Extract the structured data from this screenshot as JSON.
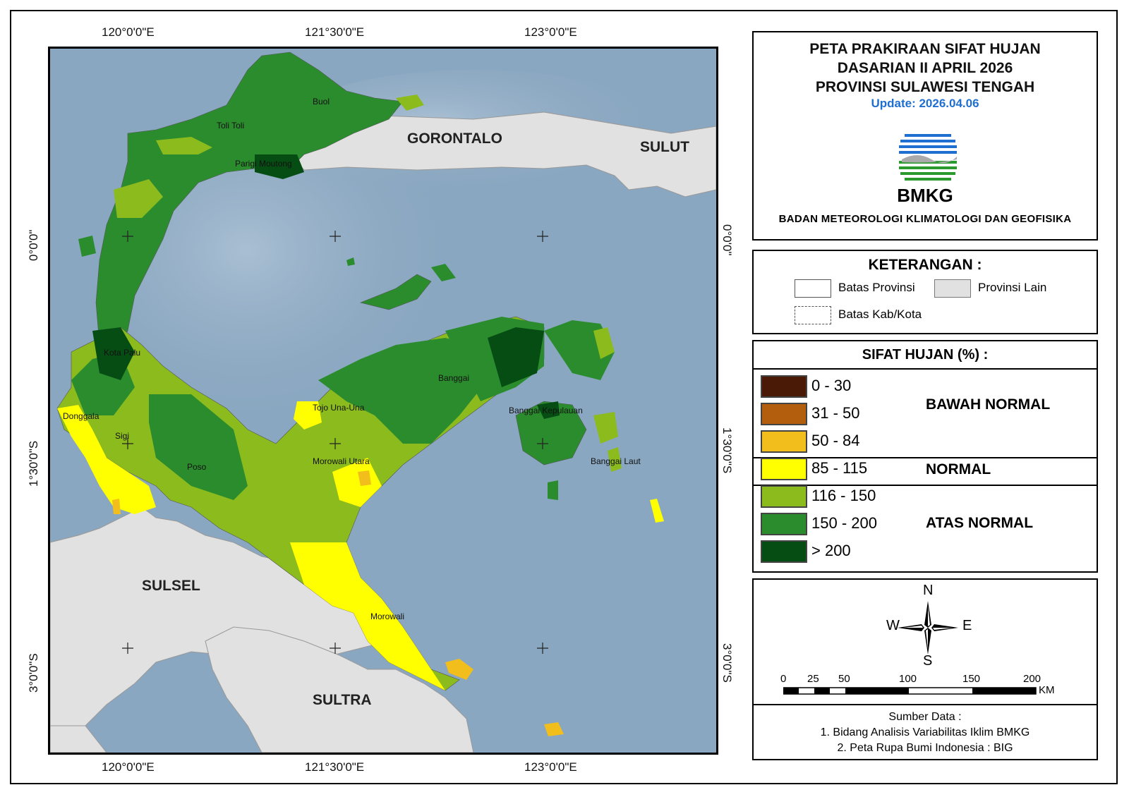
{
  "map": {
    "coords_top": [
      "120°0'0\"E",
      "121°30'0\"E",
      "123°0'0\"E"
    ],
    "coords_bottom": [
      "120°0'0\"E",
      "121°30'0\"E",
      "123°0'0\"E"
    ],
    "coords_left": [
      "0°0'0\"",
      "1°30'0\"S",
      "3°0'0\"S"
    ],
    "coords_right": [
      "0°0'0\"",
      "1°30'0\"S",
      "3°0'0\"S"
    ],
    "other_provinces": {
      "gorontalo": "GORONTALO",
      "sulut": "SULUT",
      "sulsel": "SULSEL",
      "sultra": "SULTRA"
    },
    "regencies": {
      "buol": "Buol",
      "tolitoli": "Toli Toli",
      "parigi": "Parigi Moutong",
      "palu": "Kota Palu",
      "donggala": "Donggala",
      "sigi": "Sigi",
      "poso": "Poso",
      "tojo": "Tojo Una-Una",
      "banggai": "Banggai",
      "bangkep": "Banggai Kepulauan",
      "banglaut": "Banggai Laut",
      "morut": "Morowali Utara",
      "morowali": "Morowali"
    }
  },
  "title": {
    "line1": "PETA PRAKIRAAN SIFAT HUJAN",
    "line2": "DASARIAN II APRIL 2026",
    "line3": "PROVINSI SULAWESI TENGAH",
    "update": "Update: 2026.04.06",
    "logo_text": "BMKG",
    "agency": "BADAN METEOROLOGI KLIMATOLOGI DAN GEOFISIKA"
  },
  "keterangan": {
    "title": "KETERANGAN :",
    "batas_provinsi": "Batas Provinsi",
    "provinsi_lain": "Provinsi Lain",
    "batas_kab": "Batas Kab/Kota"
  },
  "sifat_hujan": {
    "title": "SIFAT HUJAN (%) :",
    "classes": [
      {
        "range": "0 - 30",
        "color": "#4a1a06"
      },
      {
        "range": "31 - 50",
        "color": "#b35e0c"
      },
      {
        "range": "50 - 84",
        "color": "#f2be1c"
      },
      {
        "range": "85 - 115",
        "color": "#ffff00"
      },
      {
        "range": "116 - 150",
        "color": "#8cbb1e"
      },
      {
        "range": "150 - 200",
        "color": "#2b8c2e"
      },
      {
        "range": "> 200",
        "color": "#064d14"
      }
    ],
    "categories": {
      "bawah": "BAWAH NORMAL",
      "normal": "NORMAL",
      "atas": "ATAS NORMAL"
    }
  },
  "compass": {
    "n": "N",
    "s": "S",
    "e": "E",
    "w": "W"
  },
  "scale": {
    "ticks": [
      "0",
      "25",
      "50",
      "100",
      "150",
      "200"
    ],
    "unit": "KM"
  },
  "sources": {
    "title": "Sumber Data :",
    "line1": "1. Bidang Analisis Variabilitas Iklim BMKG",
    "line2": "2. Peta Rupa Bumi Indonesia : BIG"
  },
  "colors": {
    "sea": "#7f9db8",
    "other_province": "#e1e1e1",
    "update_blue": "#1f6fd1"
  }
}
